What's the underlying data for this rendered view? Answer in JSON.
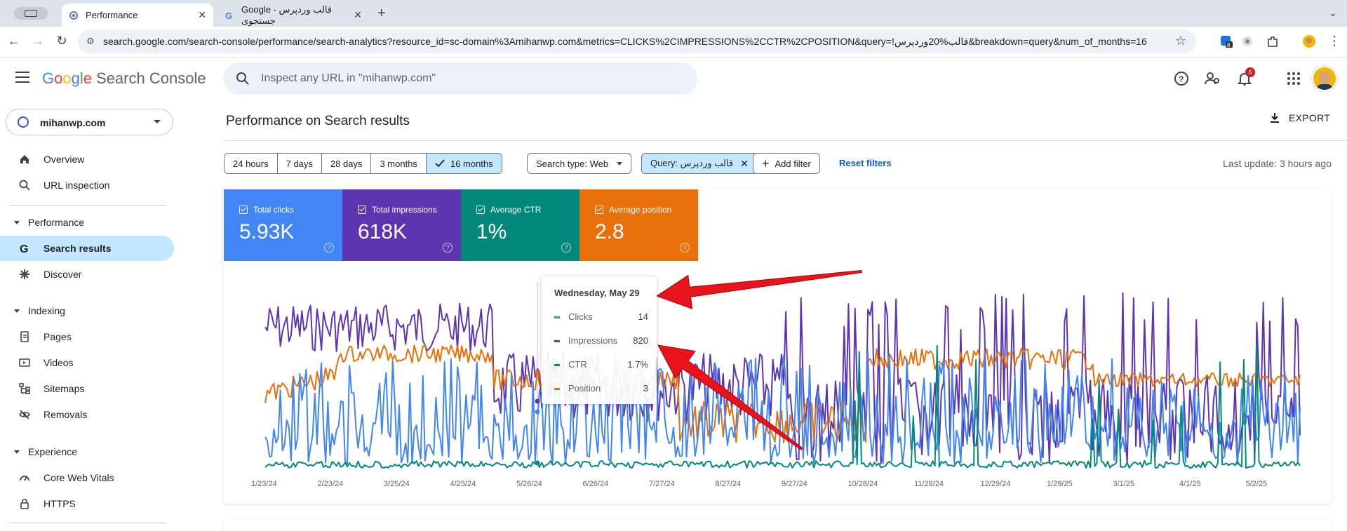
{
  "browser": {
    "tabs": [
      {
        "title": "Performance",
        "active": true
      },
      {
        "title": "Google قالب وردپرس - جستجوی",
        "active": false
      }
    ],
    "url": "search.google.com/search-console/performance/search-analytics?resource_id=sc-domain%3Amihanwp.com&metrics=CLICKS%2CIMPRESSIONS%2CCTR%2CPOSITION&query=!قالب%20وردپرس&breakdown=query&num_of_months=16",
    "ext_badge": "8"
  },
  "header": {
    "logo_google": [
      "G",
      "o",
      "o",
      "g",
      "l",
      "e"
    ],
    "logo_product": "Search Console",
    "search_placeholder": "Inspect any URL in \"mihanwp.com\"",
    "notification_count": "6"
  },
  "sidebar": {
    "property": "mihanwp.com",
    "overview": "Overview",
    "url_inspection": "URL inspection",
    "section_performance": "Performance",
    "search_results": "Search results",
    "discover": "Discover",
    "section_indexing": "Indexing",
    "pages": "Pages",
    "videos": "Videos",
    "sitemaps": "Sitemaps",
    "removals": "Removals",
    "section_experience": "Experience",
    "core_web_vitals": "Core Web Vitals",
    "https": "HTTPS"
  },
  "main": {
    "title": "Performance on Search results",
    "export": "EXPORT",
    "ranges": [
      "24 hours",
      "7 days",
      "28 days",
      "3 months",
      "16 months"
    ],
    "selected_range": "16 months",
    "search_type": "Search type: Web",
    "query_filter": "Query: قالب وردپرس",
    "add_filter": "Add filter",
    "reset_filters": "Reset filters",
    "last_update": "Last update: 3 hours ago"
  },
  "metrics": [
    {
      "label": "Total clicks",
      "value": "5.93K",
      "color": "#4285f4"
    },
    {
      "label": "Total impressions",
      "value": "618K",
      "color": "#5e35b1"
    },
    {
      "label": "Average CTR",
      "value": "1%",
      "color": "#00897b"
    },
    {
      "label": "Average position",
      "value": "2.8",
      "color": "#e8710a"
    }
  ],
  "tooltip": {
    "date": "Wednesday, May 29",
    "rows": [
      {
        "label": "Clicks",
        "value": "14",
        "color": "#4285f4"
      },
      {
        "label": "Impressions",
        "value": "820",
        "color": "#5e35b1"
      },
      {
        "label": "CTR",
        "value": "1.7%",
        "color": "#00897b"
      },
      {
        "label": "Position",
        "value": "3",
        "color": "#e8710a"
      }
    ]
  },
  "chart_data": {
    "type": "line",
    "x_ticks": [
      "1/23/24",
      "2/23/24",
      "3/25/24",
      "4/25/24",
      "5/26/24",
      "6/26/24",
      "7/27/24",
      "8/27/24",
      "9/27/24",
      "10/28/24",
      "11/28/24",
      "12/29/24",
      "1/29/25",
      "3/1/25",
      "4/1/25",
      "5/2/25"
    ],
    "hover_date": "Wednesday, May 29",
    "series": [
      {
        "name": "Clicks",
        "color": "#4285f4"
      },
      {
        "name": "Impressions",
        "color": "#5e35b1"
      },
      {
        "name": "CTR",
        "color": "#00897b"
      },
      {
        "name": "Position",
        "color": "#e8710a"
      }
    ]
  }
}
